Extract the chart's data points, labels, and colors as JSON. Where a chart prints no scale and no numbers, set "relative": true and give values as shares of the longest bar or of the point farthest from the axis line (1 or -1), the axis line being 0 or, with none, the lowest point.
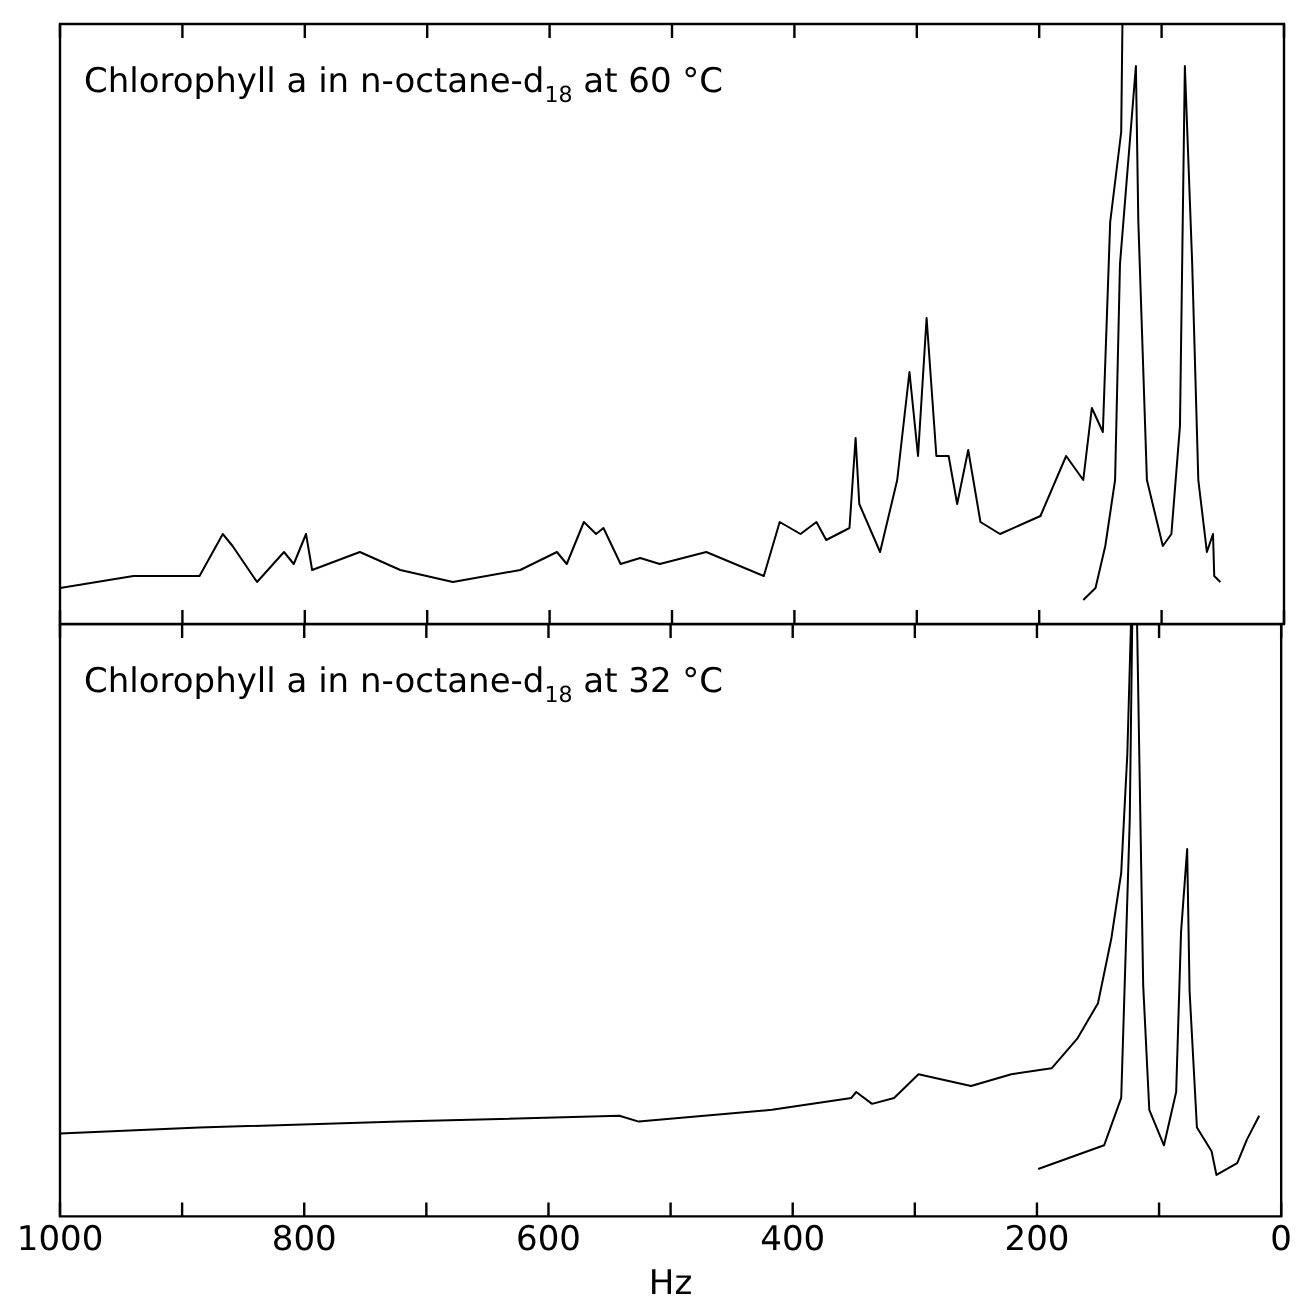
{
  "chart_data": [
    {
      "type": "line",
      "title": "Chlorophyll a in n-octane-d$_{18}$ at 60 °C",
      "relative": true,
      "marker": "none",
      "line_style": "solid",
      "tick_labels": false,
      "xlim": [
        1000,
        0
      ],
      "xticks": [
        {
          "value": 1000,
          "label": null
        },
        {
          "value": 900,
          "label": null
        },
        {
          "value": 800,
          "label": null
        },
        {
          "value": 700,
          "label": null
        },
        {
          "value": 600,
          "label": null
        },
        {
          "value": 500,
          "label": null
        },
        {
          "value": 400,
          "label": null
        },
        {
          "value": 300,
          "label": null
        },
        {
          "value": 200,
          "label": null
        },
        {
          "value": 100,
          "label": null
        },
        {
          "value": 0,
          "label": null
        }
      ],
      "series": [
        {
          "color": "#000000",
          "x": [
            1000,
            940,
            886,
            867,
            859,
            839,
            817,
            809,
            799,
            794,
            755,
            722,
            679,
            624,
            594,
            586,
            572,
            562,
            556,
            542,
            526,
            510,
            472,
            425,
            412,
            395,
            382,
            374,
            355,
            350,
            347,
            330,
            316,
            306,
            299,
            292,
            284,
            274,
            267,
            258,
            248,
            232,
            199,
            178,
            164,
            157,
            148,
            142,
            136,
            133,
            132
          ],
          "values": [
            0.06,
            0.08,
            0.08,
            0.15,
            0.13,
            0.07,
            0.12,
            0.1,
            0.15,
            0.09,
            0.12,
            0.09,
            0.07,
            0.09,
            0.12,
            0.1,
            0.17,
            0.15,
            0.16,
            0.1,
            0.11,
            0.1,
            0.12,
            0.08,
            0.17,
            0.15,
            0.17,
            0.14,
            0.16,
            0.31,
            0.2,
            0.12,
            0.24,
            0.42,
            0.28,
            0.51,
            0.28,
            0.28,
            0.2,
            0.29,
            0.17,
            0.15,
            0.18,
            0.28,
            0.24,
            0.36,
            0.32,
            0.67,
            0.77,
            0.82,
            1
          ]
        },
        {
          "color": "#000000",
          "x": [
            164,
            154,
            146,
            138,
            134,
            121,
            119,
            112,
            99,
            92,
            85,
            81,
            75,
            70,
            63,
            58,
            57,
            52
          ],
          "values": [
            0.04,
            0.06,
            0.13,
            0.24,
            0.6,
            0.93,
            0.67,
            0.24,
            0.13,
            0.15,
            0.33,
            0.93,
            0.6,
            0.24,
            0.12,
            0.15,
            0.08,
            0.07
          ]
        }
      ]
    },
    {
      "type": "line",
      "title": "Chlorophyll a in n-octane-d$_{18}$ at 32 °C",
      "xlabel": "Hz",
      "relative": true,
      "marker": "none",
      "line_style": "solid",
      "tick_labels": "x",
      "xlim": [
        1000,
        0
      ],
      "xticks": [
        1000,
        {
          "value": 900,
          "label": null
        },
        800,
        {
          "value": 700,
          "label": null
        },
        600,
        {
          "value": 500,
          "label": null
        },
        400,
        {
          "value": 300,
          "label": null
        },
        200,
        {
          "value": 100,
          "label": null
        },
        0
      ],
      "series": [
        {
          "color": "#000000",
          "x": [
            1000,
            886,
            722,
            542,
            526,
            417,
            352,
            348,
            335,
            317,
            297,
            254,
            221,
            188,
            167,
            150,
            139,
            131,
            126,
            123
          ],
          "values": [
            0.14,
            0.15,
            0.16,
            0.17,
            0.16,
            0.18,
            0.2,
            0.21,
            0.19,
            0.2,
            0.24,
            0.22,
            0.24,
            0.25,
            0.3,
            0.36,
            0.47,
            0.58,
            0.78,
            1
          ]
        },
        {
          "color": "#000000",
          "x": [
            199,
            145,
            131,
            124,
            122,
            118,
            113,
            108,
            96,
            86,
            82,
            77,
            75,
            69,
            57,
            53,
            36,
            28,
            18
          ],
          "values": [
            0.08,
            0.12,
            0.2,
            0.67,
            1,
            1,
            0.39,
            0.18,
            0.12,
            0.21,
            0.48,
            0.62,
            0.38,
            0.15,
            0.11,
            0.07,
            0.09,
            0.13,
            0.17
          ]
        }
      ]
    }
  ]
}
